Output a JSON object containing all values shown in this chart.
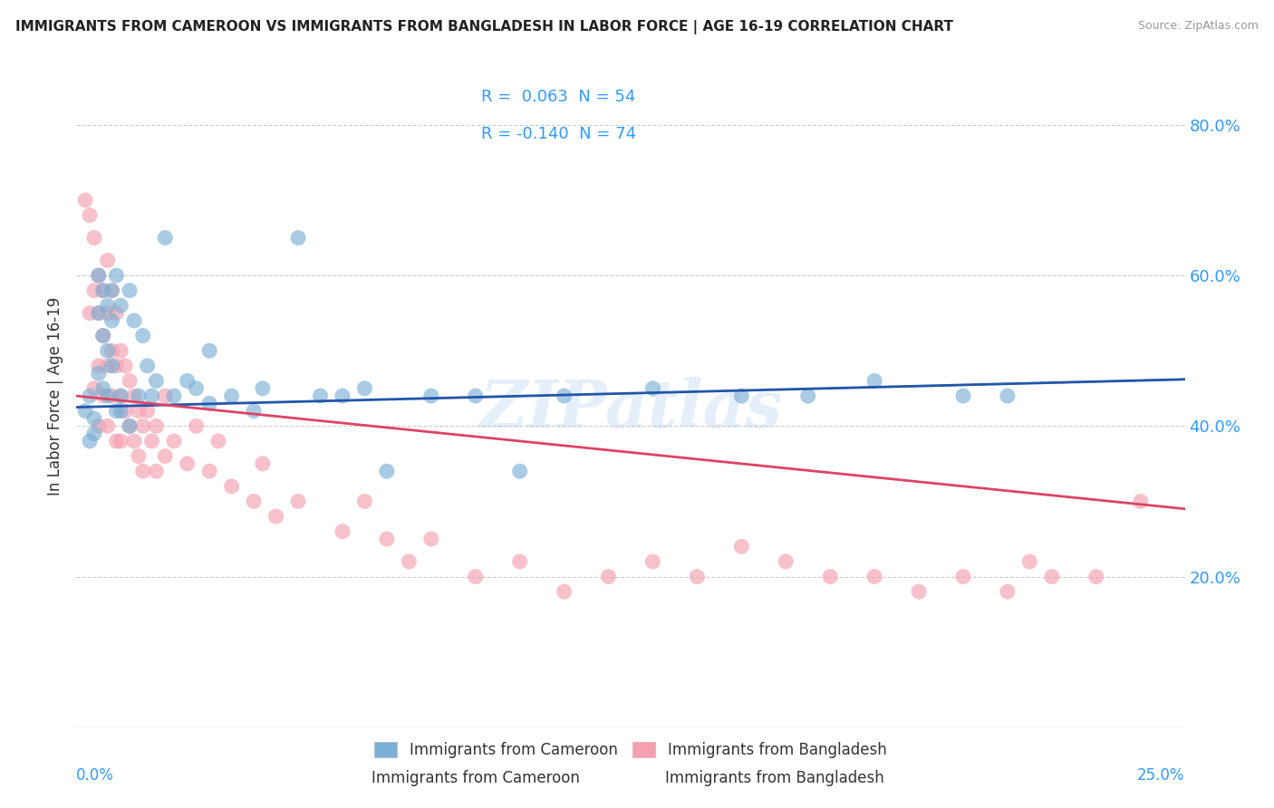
{
  "title": "IMMIGRANTS FROM CAMEROON VS IMMIGRANTS FROM BANGLADESH IN LABOR FORCE | AGE 16-19 CORRELATION CHART",
  "source": "Source: ZipAtlas.com",
  "xlabel_bottom_left": "0.0%",
  "xlabel_bottom_right": "25.0%",
  "ylabel": "In Labor Force | Age 16-19",
  "y_tick_labels": [
    "20.0%",
    "40.0%",
    "60.0%",
    "80.0%"
  ],
  "y_tick_values": [
    0.2,
    0.4,
    0.6,
    0.8
  ],
  "xlim": [
    0.0,
    0.25
  ],
  "ylim": [
    0.0,
    0.88
  ],
  "cameroon_R": 0.063,
  "cameroon_N": 54,
  "bangladesh_R": -0.14,
  "bangladesh_N": 74,
  "cameroon_color": "#7BAFD4",
  "bangladesh_color": "#F4A0B0",
  "cameroon_line_color": "#2255AA",
  "bangladesh_line_color": "#DD4466",
  "legend_text_color": "#3399FF",
  "watermark": "ZIPatlas",
  "background_color": "#ffffff",
  "cameroon_x": [
    0.002,
    0.003,
    0.003,
    0.004,
    0.004,
    0.005,
    0.005,
    0.005,
    0.006,
    0.006,
    0.006,
    0.007,
    0.007,
    0.007,
    0.008,
    0.008,
    0.008,
    0.009,
    0.009,
    0.01,
    0.01,
    0.01,
    0.012,
    0.012,
    0.013,
    0.014,
    0.015,
    0.016,
    0.017,
    0.018,
    0.02,
    0.022,
    0.025,
    0.027,
    0.03,
    0.03,
    0.035,
    0.04,
    0.042,
    0.05,
    0.055,
    0.06,
    0.065,
    0.07,
    0.08,
    0.09,
    0.1,
    0.11,
    0.13,
    0.15,
    0.165,
    0.18,
    0.2,
    0.21
  ],
  "cameroon_y": [
    0.42,
    0.38,
    0.44,
    0.41,
    0.39,
    0.6,
    0.55,
    0.47,
    0.58,
    0.52,
    0.45,
    0.56,
    0.5,
    0.44,
    0.58,
    0.54,
    0.48,
    0.6,
    0.42,
    0.56,
    0.44,
    0.42,
    0.58,
    0.4,
    0.54,
    0.44,
    0.52,
    0.48,
    0.44,
    0.46,
    0.65,
    0.44,
    0.46,
    0.45,
    0.5,
    0.43,
    0.44,
    0.42,
    0.45,
    0.65,
    0.44,
    0.44,
    0.45,
    0.34,
    0.44,
    0.44,
    0.34,
    0.44,
    0.45,
    0.44,
    0.44,
    0.46,
    0.44,
    0.44
  ],
  "bangladesh_x": [
    0.002,
    0.003,
    0.003,
    0.004,
    0.004,
    0.004,
    0.005,
    0.005,
    0.005,
    0.005,
    0.006,
    0.006,
    0.006,
    0.007,
    0.007,
    0.007,
    0.007,
    0.008,
    0.008,
    0.008,
    0.009,
    0.009,
    0.009,
    0.01,
    0.01,
    0.01,
    0.011,
    0.011,
    0.012,
    0.012,
    0.013,
    0.013,
    0.014,
    0.014,
    0.015,
    0.015,
    0.016,
    0.017,
    0.018,
    0.018,
    0.02,
    0.02,
    0.022,
    0.025,
    0.027,
    0.03,
    0.032,
    0.035,
    0.04,
    0.042,
    0.045,
    0.05,
    0.06,
    0.065,
    0.07,
    0.075,
    0.08,
    0.09,
    0.1,
    0.11,
    0.12,
    0.13,
    0.14,
    0.15,
    0.16,
    0.17,
    0.18,
    0.19,
    0.2,
    0.21,
    0.215,
    0.22,
    0.23,
    0.24
  ],
  "bangladesh_y": [
    0.7,
    0.68,
    0.55,
    0.65,
    0.58,
    0.45,
    0.6,
    0.55,
    0.48,
    0.4,
    0.58,
    0.52,
    0.44,
    0.62,
    0.55,
    0.48,
    0.4,
    0.58,
    0.5,
    0.44,
    0.55,
    0.48,
    0.38,
    0.5,
    0.44,
    0.38,
    0.48,
    0.42,
    0.46,
    0.4,
    0.44,
    0.38,
    0.42,
    0.36,
    0.4,
    0.34,
    0.42,
    0.38,
    0.4,
    0.34,
    0.44,
    0.36,
    0.38,
    0.35,
    0.4,
    0.34,
    0.38,
    0.32,
    0.3,
    0.35,
    0.28,
    0.3,
    0.26,
    0.3,
    0.25,
    0.22,
    0.25,
    0.2,
    0.22,
    0.18,
    0.2,
    0.22,
    0.2,
    0.24,
    0.22,
    0.2,
    0.2,
    0.18,
    0.2,
    0.18,
    0.22,
    0.2,
    0.2,
    0.3
  ]
}
